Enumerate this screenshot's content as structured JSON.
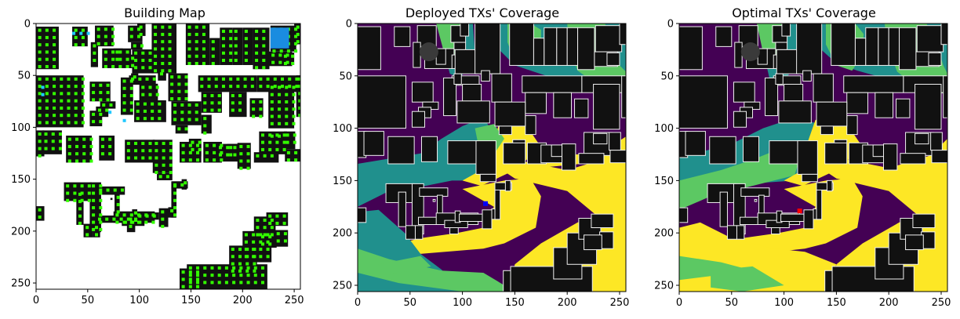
{
  "figure": {
    "panels": [
      {
        "title": "Building Map"
      },
      {
        "title": "Deployed TXs' Coverage"
      },
      {
        "title": "Optimal TXs' Coverage"
      }
    ]
  },
  "colors": {
    "background_empty": "#ffffff",
    "building": "#111111",
    "building_outline": "#f0f0f0",
    "candidate_point": "#33ff00",
    "candidate_point_highlight": "#20c8ff",
    "candidate_block_highlight": "#1a8ce0",
    "coverage_none": "#440154",
    "coverage_low": "#20908d",
    "coverage_mid": "#5cc863",
    "coverage_high": "#fde725",
    "deployed_tx_marker": "#0000ff",
    "optimal_tx_marker": "#ff0000"
  },
  "chart_data": [
    {
      "type": "heatmap",
      "title": "Building Map",
      "xlim": [
        0,
        256
      ],
      "ylim": [
        256,
        0
      ],
      "xticks": [
        0,
        50,
        100,
        150,
        200,
        250
      ],
      "yticks": [
        0,
        50,
        100,
        150,
        200,
        250
      ],
      "grid": false,
      "description": "Binary building map with candidate transmitter locations on rooftops"
    },
    {
      "type": "heatmap",
      "title": "Deployed TXs' Coverage",
      "xlim": [
        0,
        256
      ],
      "ylim": [
        256,
        0
      ],
      "xticks": [
        0,
        50,
        100,
        150,
        200,
        250
      ],
      "yticks": [
        0,
        50,
        100,
        150,
        200,
        250
      ],
      "grid": false,
      "tx_marker": {
        "x": 122,
        "y": 172,
        "color": "blue"
      }
    },
    {
      "type": "heatmap",
      "title": "Optimal TXs' Coverage",
      "xlim": [
        0,
        256
      ],
      "ylim": [
        256,
        0
      ],
      "xticks": [
        0,
        50,
        100,
        150,
        200,
        250
      ],
      "yticks": [
        0,
        50,
        100,
        150,
        200,
        250
      ],
      "grid": false,
      "tx_marker": {
        "x": 115,
        "y": 179,
        "color": "red"
      }
    }
  ]
}
